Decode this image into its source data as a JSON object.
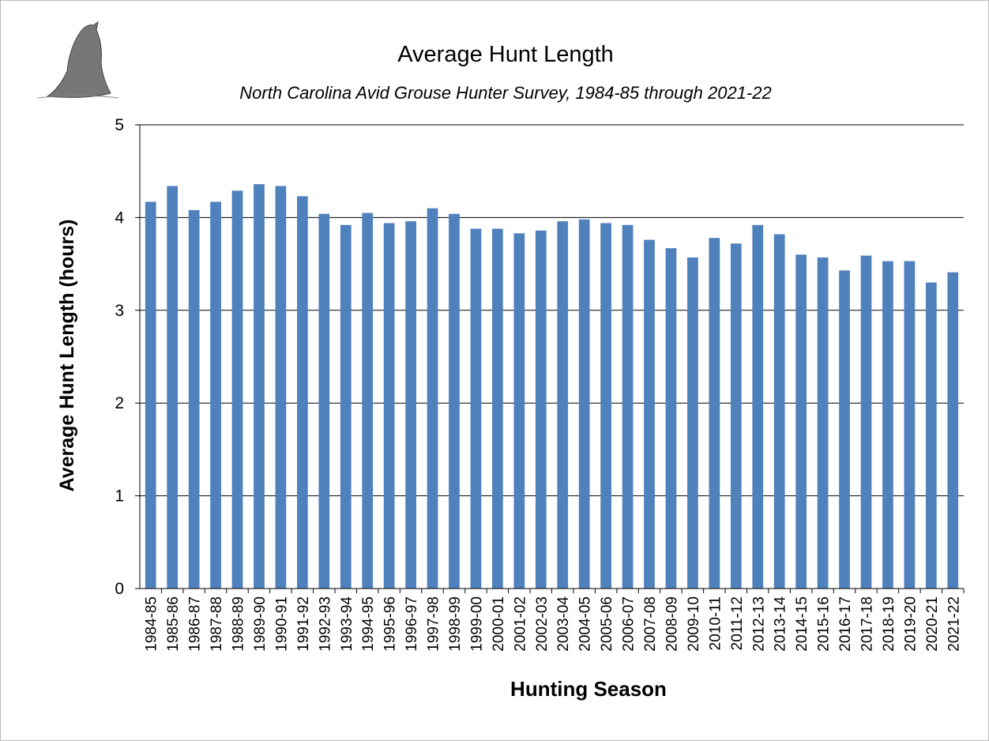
{
  "chart_data": {
    "type": "bar",
    "title": "Average Hunt Length",
    "subtitle": "North Carolina Avid Grouse Hunter Survey, 1984-85 through 2021-22",
    "x_label": "Hunting Season",
    "y_label": "Average Hunt Length (hours)",
    "categories": [
      "1984-85",
      "1985-86",
      "1986-87",
      "1987-88",
      "1988-89",
      "1989-90",
      "1990-91",
      "1991-92",
      "1992-93",
      "1993-94",
      "1994-95",
      "1995-96",
      "1996-97",
      "1997-98",
      "1998-99",
      "1999-00",
      "2000-01",
      "2001-02",
      "2002-03",
      "2003-04",
      "2004-05",
      "2005-06",
      "2006-07",
      "2007-08",
      "2008-09",
      "2009-10",
      "2010-11",
      "2011-12",
      "2012-13",
      "2013-14",
      "2014-15",
      "2015-16",
      "2016-17",
      "2017-18",
      "2018-19",
      "2019-20",
      "2020-21",
      "2021-22"
    ],
    "values": [
      4.17,
      4.34,
      4.08,
      4.17,
      4.29,
      4.36,
      4.34,
      4.23,
      4.04,
      3.92,
      4.05,
      3.94,
      3.96,
      4.1,
      4.04,
      3.88,
      3.88,
      3.83,
      3.86,
      3.96,
      3.98,
      3.94,
      3.92,
      3.76,
      3.67,
      3.57,
      3.78,
      3.72,
      3.92,
      3.82,
      3.6,
      3.57,
      3.43,
      3.59,
      3.53,
      3.53,
      3.3,
      3.41
    ],
    "color": "#4f81bd",
    "ylim": [
      0,
      5
    ],
    "yticks": [
      0,
      1,
      2,
      3,
      4,
      5
    ],
    "grid": true
  }
}
